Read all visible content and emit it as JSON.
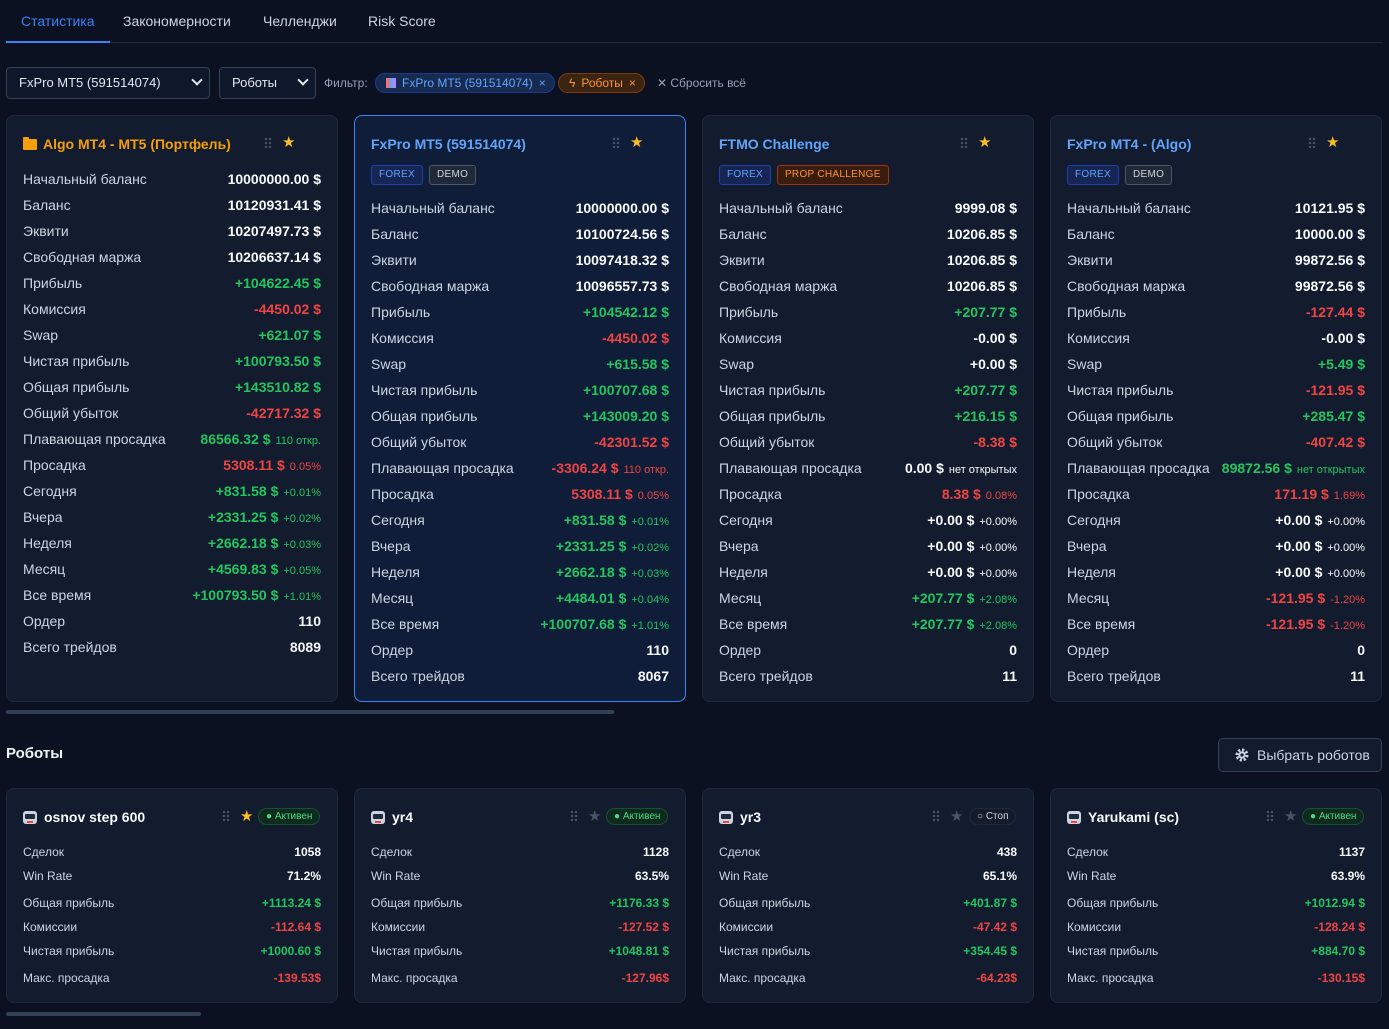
{
  "tabs": [
    "Статистика",
    "Закономерности",
    "Челленджи",
    "Risk Score"
  ],
  "filters": {
    "account_select": "FxPro MT5 (591514074)",
    "type_select": "Роботы",
    "label": "Фильтр:",
    "chip_account": "FxPro MT5 (591514074)",
    "chip_robots": "Роботы",
    "reset": "Сбросить всё"
  },
  "accounts": [
    {
      "title": "Algo MT4 - MT5 (Портфель)",
      "rows": [
        {
          "k": "Начальный баланс",
          "v": "10000000.00 $"
        },
        {
          "k": "Баланс",
          "v": "10120931.41 $"
        },
        {
          "k": "Эквити",
          "v": "10207497.73 $"
        },
        {
          "k": "Свободная маржа",
          "v": "10206637.14 $"
        },
        {
          "k": "Прибыль",
          "v": "+104622.45 $"
        },
        {
          "k": "Комиссия",
          "v": "-4450.02 $"
        },
        {
          "k": "Swap",
          "v": "+621.07 $"
        },
        {
          "k": "Чистая прибыль",
          "v": "+100793.50 $"
        },
        {
          "k": "Общая прибыль",
          "v": "+143510.82 $"
        },
        {
          "k": "Общий убыток",
          "v": "-42717.32 $"
        },
        {
          "k": "Плавающая просадка",
          "v": "86566.32 $",
          "sub": "110 откр."
        },
        {
          "k": "Просадка",
          "v": "5308.11 $",
          "sub": "0.05%"
        },
        {
          "k": "Сегодня",
          "v": "+831.58 $",
          "sub": "+0.01%"
        },
        {
          "k": "Вчера",
          "v": "+2331.25 $",
          "sub": "+0.02%"
        },
        {
          "k": "Неделя",
          "v": "+2662.18 $",
          "sub": "+0.03%"
        },
        {
          "k": "Месяц",
          "v": "+4569.83 $",
          "sub": "+0.05%"
        },
        {
          "k": "Все время",
          "v": "+100793.50 $",
          "sub": "+1.01%"
        },
        {
          "k": "Ордер",
          "v": "110"
        },
        {
          "k": "Всего трейдов",
          "v": "8089"
        }
      ]
    },
    {
      "title": "FxPro MT5 (591514074)",
      "badges": [
        "FOREX",
        "DEMO"
      ],
      "rows": [
        {
          "k": "Начальный баланс",
          "v": "10000000.00 $"
        },
        {
          "k": "Баланс",
          "v": "10100724.56 $"
        },
        {
          "k": "Эквити",
          "v": "10097418.32 $"
        },
        {
          "k": "Свободная маржа",
          "v": "10096557.73 $"
        },
        {
          "k": "Прибыль",
          "v": "+104542.12 $"
        },
        {
          "k": "Комиссия",
          "v": "-4450.02 $"
        },
        {
          "k": "Swap",
          "v": "+615.58 $"
        },
        {
          "k": "Чистая прибыль",
          "v": "+100707.68 $"
        },
        {
          "k": "Общая прибыль",
          "v": "+143009.20 $"
        },
        {
          "k": "Общий убыток",
          "v": "-42301.52 $"
        },
        {
          "k": "Плавающая просадка",
          "v": "-3306.24 $",
          "sub": "110 откр."
        },
        {
          "k": "Просадка",
          "v": "5308.11 $",
          "sub": "0.05%"
        },
        {
          "k": "Сегодня",
          "v": "+831.58 $",
          "sub": "+0.01%"
        },
        {
          "k": "Вчера",
          "v": "+2331.25 $",
          "sub": "+0.02%"
        },
        {
          "k": "Неделя",
          "v": "+2662.18 $",
          "sub": "+0.03%"
        },
        {
          "k": "Месяц",
          "v": "+4484.01 $",
          "sub": "+0.04%"
        },
        {
          "k": "Все время",
          "v": "+100707.68 $",
          "sub": "+1.01%"
        },
        {
          "k": "Ордер",
          "v": "110"
        },
        {
          "k": "Всего трейдов",
          "v": "8067"
        }
      ]
    },
    {
      "title": "FTMO Challenge",
      "badges": [
        "FOREX",
        "PROP CHALLENGE"
      ],
      "rows": [
        {
          "k": "Начальный баланс",
          "v": "9999.08 $"
        },
        {
          "k": "Баланс",
          "v": "10206.85 $"
        },
        {
          "k": "Эквити",
          "v": "10206.85 $"
        },
        {
          "k": "Свободная маржа",
          "v": "10206.85 $"
        },
        {
          "k": "Прибыль",
          "v": "+207.77 $"
        },
        {
          "k": "Комиссия",
          "v": "-0.00 $"
        },
        {
          "k": "Swap",
          "v": "+0.00 $"
        },
        {
          "k": "Чистая прибыль",
          "v": "+207.77 $"
        },
        {
          "k": "Общая прибыль",
          "v": "+216.15 $"
        },
        {
          "k": "Общий убыток",
          "v": "-8.38 $"
        },
        {
          "k": "Плавающая просадка",
          "v": "0.00 $",
          "sub": "нет открытых"
        },
        {
          "k": "Просадка",
          "v": "8.38 $",
          "sub": "0.08%"
        },
        {
          "k": "Сегодня",
          "v": "+0.00 $",
          "sub": "+0.00%"
        },
        {
          "k": "Вчера",
          "v": "+0.00 $",
          "sub": "+0.00%"
        },
        {
          "k": "Неделя",
          "v": "+0.00 $",
          "sub": "+0.00%"
        },
        {
          "k": "Месяц",
          "v": "+207.77 $",
          "sub": "+2.08%"
        },
        {
          "k": "Все время",
          "v": "+207.77 $",
          "sub": "+2.08%"
        },
        {
          "k": "Ордер",
          "v": "0"
        },
        {
          "k": "Всего трейдов",
          "v": "11"
        }
      ]
    },
    {
      "title": "FxPro MT4 - (Algo)",
      "badges": [
        "FOREX",
        "DEMO"
      ],
      "rows": [
        {
          "k": "Начальный баланс",
          "v": "10121.95 $"
        },
        {
          "k": "Баланс",
          "v": "10000.00 $"
        },
        {
          "k": "Эквити",
          "v": "99872.56 $"
        },
        {
          "k": "Свободная маржа",
          "v": "99872.56 $"
        },
        {
          "k": "Прибыль",
          "v": "-127.44 $"
        },
        {
          "k": "Комиссия",
          "v": "-0.00 $"
        },
        {
          "k": "Swap",
          "v": "+5.49 $"
        },
        {
          "k": "Чистая прибыль",
          "v": "-121.95 $"
        },
        {
          "k": "Общая прибыль",
          "v": "+285.47 $"
        },
        {
          "k": "Общий убыток",
          "v": "-407.42 $"
        },
        {
          "k": "Плавающая просадка",
          "v": "89872.56 $",
          "sub": "нет открытых"
        },
        {
          "k": "Просадка",
          "v": "171.19 $",
          "sub": "1.69%"
        },
        {
          "k": "Сегодня",
          "v": "+0.00 $",
          "sub": "+0.00%"
        },
        {
          "k": "Вчера",
          "v": "+0.00 $",
          "sub": "+0.00%"
        },
        {
          "k": "Неделя",
          "v": "+0.00 $",
          "sub": "+0.00%"
        },
        {
          "k": "Месяц",
          "v": "-121.95 $",
          "sub": "-1.20%"
        },
        {
          "k": "Все время",
          "v": "-121.95 $",
          "sub": "-1.20%"
        },
        {
          "k": "Ордер",
          "v": "0"
        },
        {
          "k": "Всего трейдов",
          "v": "11"
        }
      ]
    }
  ],
  "robots_section": {
    "title": "Роботы",
    "pick_button": "Выбрать роботов"
  },
  "robots": [
    {
      "name": "osnov step 600",
      "status": "● Активен",
      "rows": [
        {
          "k": "Сделок",
          "v": "1058"
        },
        {
          "k": "Win Rate",
          "v": "71.2%"
        },
        {
          "k": "Общая прибыль",
          "v": "+1113.24 $"
        },
        {
          "k": "Комиссии",
          "v": "-112.64 $"
        },
        {
          "k": "Чистая прибыль",
          "v": "+1000.60 $"
        },
        {
          "k": "Макс. просадка",
          "v": "-139.53$"
        }
      ]
    },
    {
      "name": "yr4",
      "status": "● Активен",
      "rows": [
        {
          "k": "Сделок",
          "v": "1128"
        },
        {
          "k": "Win Rate",
          "v": "63.5%"
        },
        {
          "k": "Общая прибыль",
          "v": "+1176.33 $"
        },
        {
          "k": "Комиссии",
          "v": "-127.52 $"
        },
        {
          "k": "Чистая прибыль",
          "v": "+1048.81 $"
        },
        {
          "k": "Макс. просадка",
          "v": "-127.96$"
        }
      ]
    },
    {
      "name": "yr3",
      "status": "○ Стоп",
      "rows": [
        {
          "k": "Сделок",
          "v": "438"
        },
        {
          "k": "Win Rate",
          "v": "65.1%"
        },
        {
          "k": "Общая прибыль",
          "v": "+401.87 $"
        },
        {
          "k": "Комиссии",
          "v": "-47.42 $"
        },
        {
          "k": "Чистая прибыль",
          "v": "+354.45 $"
        },
        {
          "k": "Макс. просадка",
          "v": "-64.23$"
        }
      ]
    },
    {
      "name": "Yarukami (sc)",
      "status": "● Активен",
      "rows": [
        {
          "k": "Сделок",
          "v": "1137"
        },
        {
          "k": "Win Rate",
          "v": "63.9%"
        },
        {
          "k": "Общая прибыль",
          "v": "+1012.94 $"
        },
        {
          "k": "Комиссии",
          "v": "-128.24 $"
        },
        {
          "k": "Чистая прибыль",
          "v": "+884.70 $"
        },
        {
          "k": "Макс. просадка",
          "v": "-130.15$"
        }
      ]
    }
  ]
}
